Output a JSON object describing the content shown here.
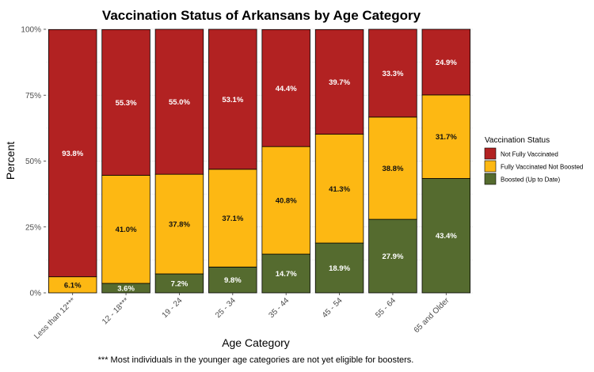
{
  "chart_data": {
    "type": "bar",
    "stacked": true,
    "title": "Vaccination Status of Arkansans by Age Category",
    "xlabel": "Age Category",
    "ylabel": "Percent",
    "ylim": [
      0,
      100
    ],
    "yticks": [
      "0%",
      "25%",
      "50%",
      "75%",
      "100%"
    ],
    "categories": [
      "Less than 12***",
      "12 - 18***",
      "19 - 24",
      "25 - 34",
      "35 - 44",
      "45 - 54",
      "55 - 64",
      "65 and Older"
    ],
    "series": [
      {
        "name": "Boosted (Up to Date)",
        "color": "#556B2F",
        "values": [
          0.0,
          3.6,
          7.2,
          9.8,
          14.7,
          18.9,
          27.9,
          43.4
        ],
        "labels": [
          "0.0%",
          "3.6%",
          "7.2%",
          "9.8%",
          "14.7%",
          "18.9%",
          "27.9%",
          "43.4%"
        ]
      },
      {
        "name": "Fully Vaccinated Not Boosted",
        "color": "#FDB813",
        "values": [
          6.1,
          41.0,
          37.8,
          37.1,
          40.8,
          41.3,
          38.8,
          31.7
        ],
        "labels": [
          "6.1%",
          "41.0%",
          "37.8%",
          "37.1%",
          "40.8%",
          "41.3%",
          "38.8%",
          "31.7%"
        ]
      },
      {
        "name": "Not Fully Vaccinated",
        "color": "#B22222",
        "values": [
          93.8,
          55.3,
          55.0,
          53.1,
          44.4,
          39.7,
          33.3,
          24.9
        ],
        "labels": [
          "93.8%",
          "55.3%",
          "55.0%",
          "53.1%",
          "44.4%",
          "39.7%",
          "33.3%",
          "24.9%"
        ]
      }
    ],
    "legend": {
      "title": "Vaccination Status",
      "position": "right",
      "items": [
        "Not Fully Vaccinated",
        "Fully Vaccinated Not Boosted",
        "Boosted (Up to Date)"
      ],
      "colors": [
        "#B22222",
        "#FDB813",
        "#556B2F"
      ]
    },
    "grid": true,
    "footnote": "*** Most individuals in the younger age categories are not yet eligible for boosters."
  }
}
